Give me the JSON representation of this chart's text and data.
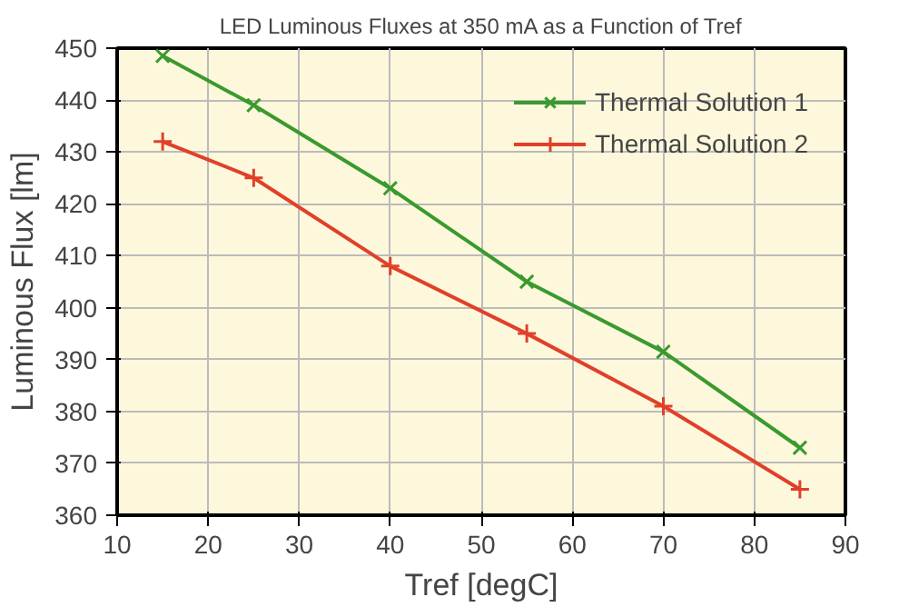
{
  "chart_data": {
    "type": "line",
    "title": "LED Luminous Fluxes at 350 mA as a Function of Tref",
    "xlabel": "Tref [degC]",
    "ylabel": "Luminous Flux [lm]",
    "x": [
      15,
      25,
      40,
      55,
      70,
      85
    ],
    "series": [
      {
        "name": "Thermal Solution 1",
        "color": "#3a9a2e",
        "marker": "x",
        "values": [
          448.5,
          439,
          423,
          405,
          391.5,
          373
        ]
      },
      {
        "name": "Thermal Solution 2",
        "color": "#e0402a",
        "marker": "cross",
        "values": [
          432,
          425,
          408,
          395,
          381,
          365
        ]
      }
    ],
    "xlim": [
      10,
      90
    ],
    "xticks": [
      10,
      20,
      30,
      40,
      50,
      60,
      70,
      80,
      90
    ],
    "ylim": [
      360,
      450
    ],
    "yticks": [
      360,
      370,
      380,
      390,
      400,
      410,
      420,
      430,
      440,
      450
    ],
    "grid": true,
    "legend": "top right",
    "line_style": "solid"
  }
}
